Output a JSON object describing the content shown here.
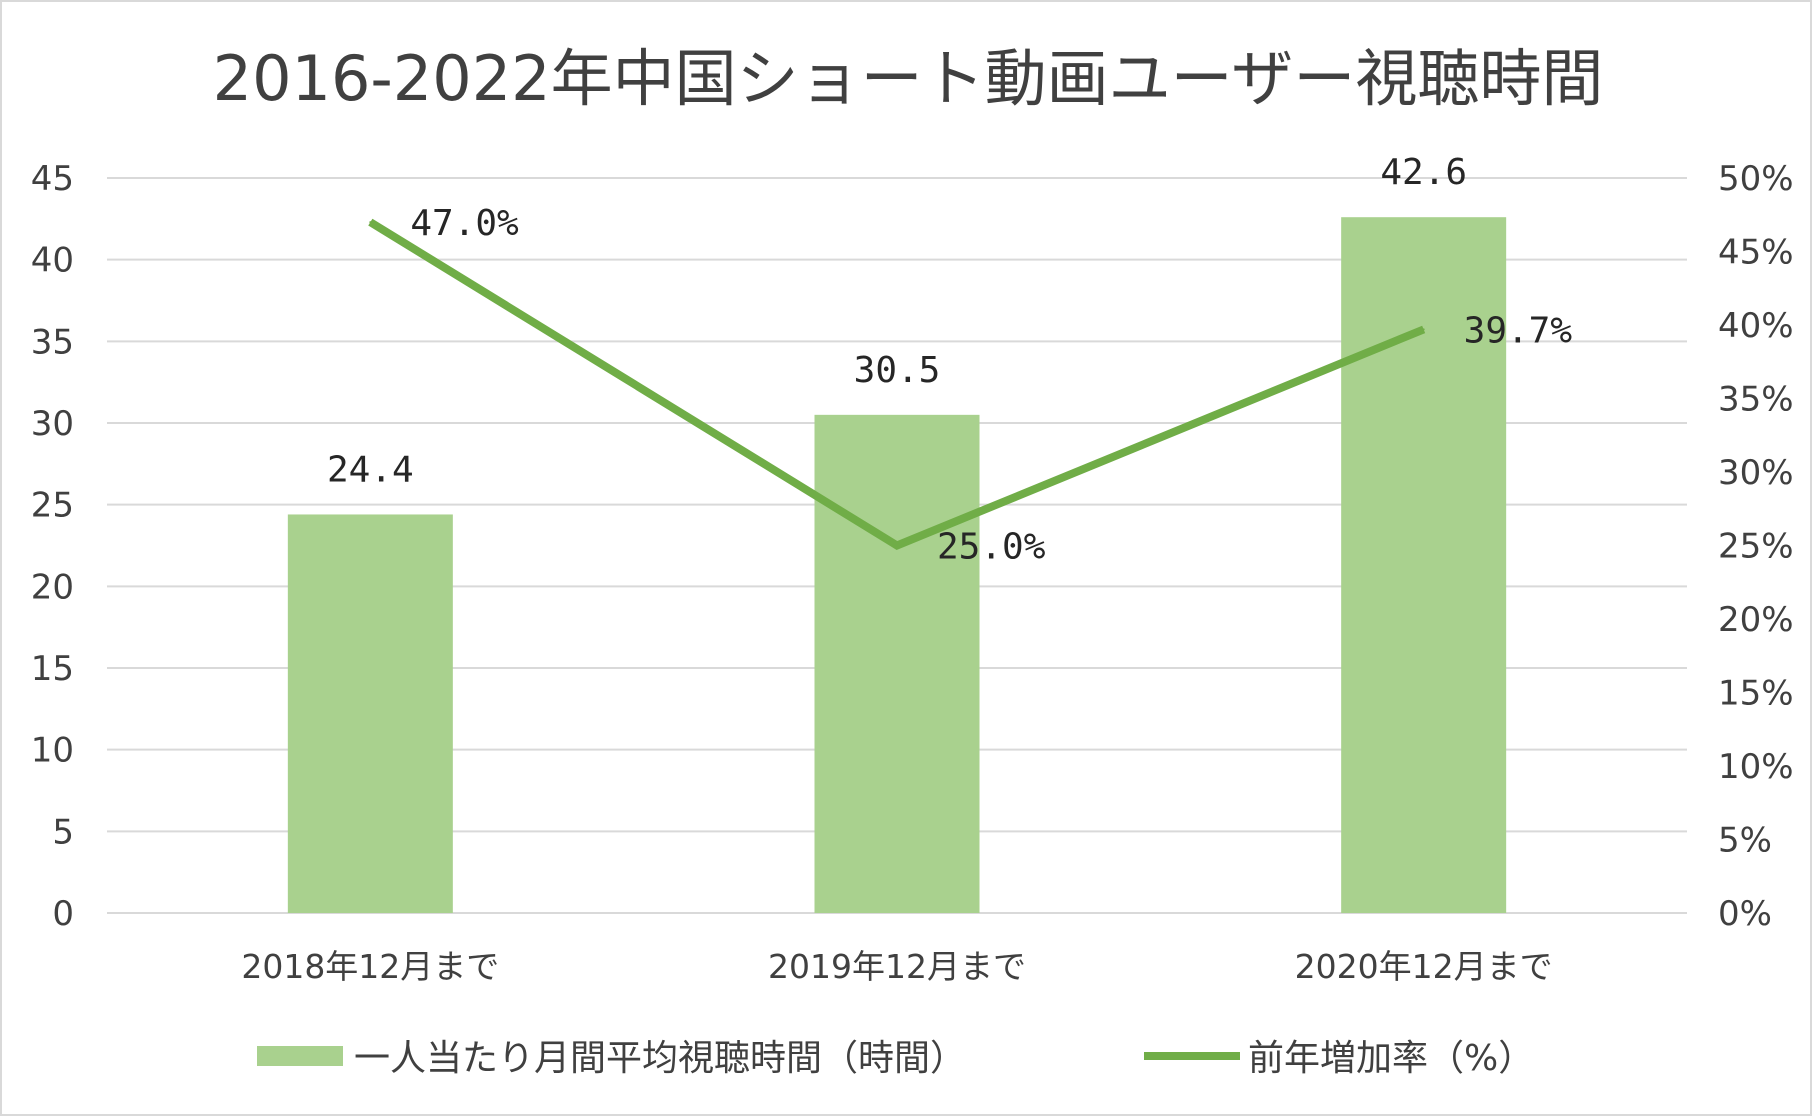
{
  "chart_data": {
    "type": "bar+line",
    "title": "2016-2022年中国ショート動画ユーザー視聴時間",
    "categories": [
      "2018年12月まで",
      "2019年12月まで",
      "2020年12月まで"
    ],
    "series": [
      {
        "name": "一人当たり月間平均視聴時間（時間）",
        "type": "bar",
        "axis": "left",
        "values": [
          24.4,
          30.5,
          42.6
        ],
        "labels": [
          "24.4",
          "30.5",
          "42.6"
        ],
        "color": "#a9d18e"
      },
      {
        "name": "前年増加率（%）",
        "type": "line",
        "axis": "right",
        "values": [
          47.0,
          25.0,
          39.7
        ],
        "labels": [
          "47.0%",
          "25.0%",
          "39.7%"
        ],
        "color": "#70ad47"
      }
    ],
    "y_left": {
      "min": 0,
      "max": 45,
      "step": 5,
      "ticks": [
        "0",
        "5",
        "10",
        "15",
        "20",
        "25",
        "30",
        "35",
        "40",
        "45"
      ]
    },
    "y_right": {
      "min": 0,
      "max": 50,
      "step": 5,
      "ticks": [
        "0%",
        "5%",
        "10%",
        "15%",
        "20%",
        "25%",
        "30%",
        "35%",
        "40%",
        "45%",
        "50%"
      ]
    },
    "grid": true,
    "legend_position": "bottom"
  }
}
